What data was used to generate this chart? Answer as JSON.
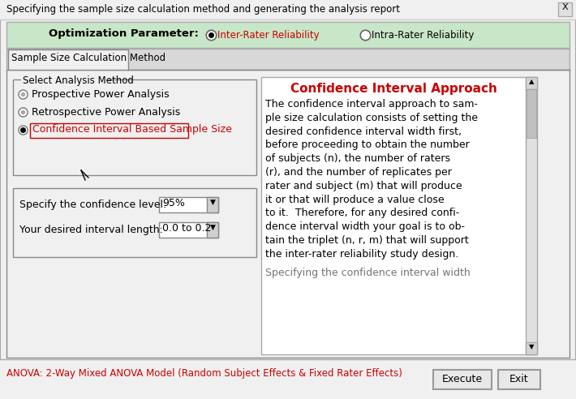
{
  "title_bar": "Specifying the sample size calculation method and generating the analysis report",
  "close_x": "X",
  "opt_param_label": "Optimization Parameter:",
  "radio1_label": "Inter-Rater Reliability",
  "radio2_label": "Intra-Rater Reliability",
  "tab_label": "Sample Size Calculation Method",
  "group_label": "Select Analysis Method",
  "radio_a": "Prospective Power Analysis",
  "radio_b": "Retrospective Power Analysis",
  "radio_c": "Confidence Interval Based Sample Size",
  "conf_level_label": "Specify the confidence level:",
  "conf_level_val": "95%",
  "interval_label": "Your desired interval length:",
  "interval_val": "0.0 to 0.2",
  "ci_title": "Confidence Interval Approach",
  "ci_lines": [
    "The confidence interval approach to sam-",
    "ple size calculation consists of setting the",
    "desired confidence interval width first,",
    "before proceeding to obtain the number",
    "of subjects (n), the number of raters",
    "(r), and the number of replicates per",
    "rater and subject (m) that will produce",
    "it or that will produce a value close",
    "to it.  Therefore, for any desired confi-",
    "dence interval width your goal is to ob-",
    "tain the triplet (n, r, m) that will support",
    "the inter-rater reliability study design.",
    "",
    "Specifying the confidence interval width"
  ],
  "status_text": "ANOVA: 2-Way Mixed ANOVA Model (Random Subject Effects & Fixed Rater Effects)",
  "btn_execute": "Execute",
  "btn_exit": "Exit",
  "bg_color": "#f0f0f0",
  "green_bg": "#c8e6c8",
  "red_color": "#cc0000",
  "white": "#ffffff"
}
